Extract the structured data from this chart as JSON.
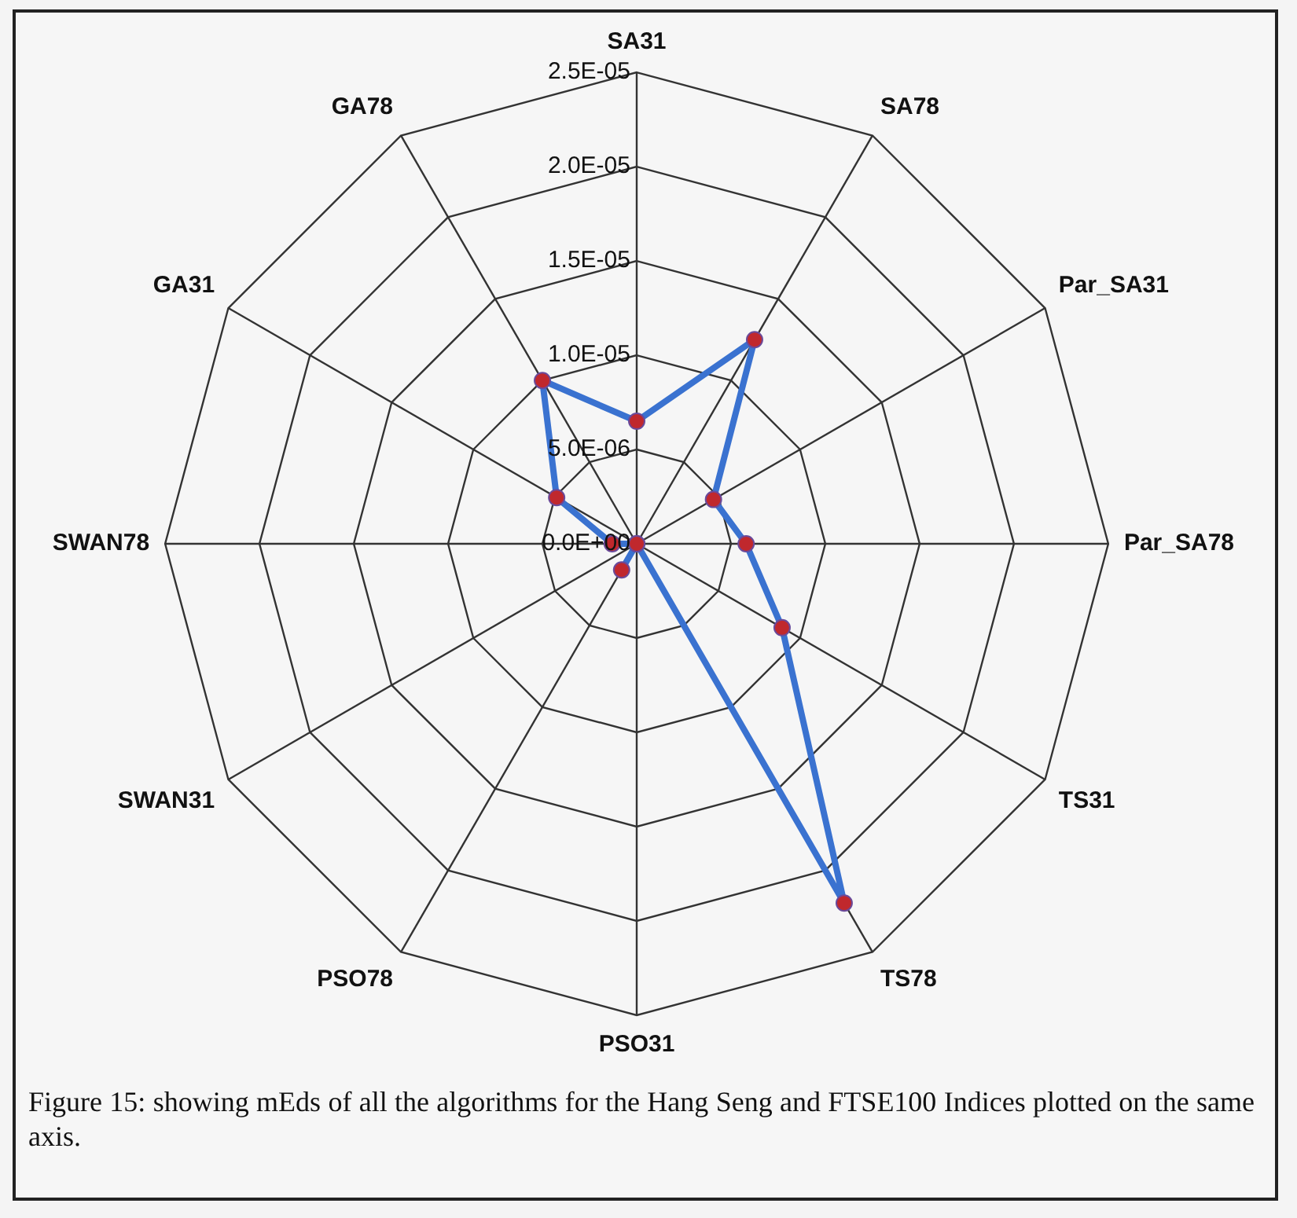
{
  "chart_data": {
    "type": "radar",
    "categories": [
      "SA31",
      "SA78",
      "Par_SA31",
      "Par_SA78",
      "TS31",
      "TS78",
      "PSO31",
      "PSO78",
      "SWAN31",
      "SWAN78",
      "GA31",
      "GA78"
    ],
    "series": [
      {
        "color": "#3a72d0",
        "colors": [
          "#c0282d",
          "#c0282d",
          "#c0282d",
          "#c0282d",
          "#c0282d",
          "#c0282d",
          "#c0282d",
          "#c0282d",
          "#c0282d",
          "#c0282d",
          "#c0282d",
          "#c0282d"
        ],
        "values": [
          6.5e-06,
          1.25e-05,
          4.7e-06,
          5.8e-06,
          8.9e-06,
          2.2e-05,
          0,
          1.6e-06,
          0,
          1.3e-06,
          4.9e-06,
          1e-05
        ]
      }
    ],
    "ylim": [
      0,
      2.5e-05
    ],
    "yticks": [
      {
        "value": 0,
        "label": "0.0E+00"
      },
      {
        "value": 5e-06,
        "label": "5.0E-06"
      },
      {
        "value": 1e-05,
        "label": "1.0E-05"
      },
      {
        "value": 1.5e-05,
        "label": "1.5E-05"
      },
      {
        "value": 2e-05,
        "label": "2.0E-05"
      },
      {
        "value": 2.5e-05,
        "label": "2.5E-05"
      }
    ],
    "grid": true,
    "legend": false,
    "marker": "circle",
    "line_style": "solid",
    "annotations": [
      "Figure 15: showing mEds of all the algorithms for the Hang Seng and FTSE100 Indices plotted on the same axis."
    ]
  }
}
